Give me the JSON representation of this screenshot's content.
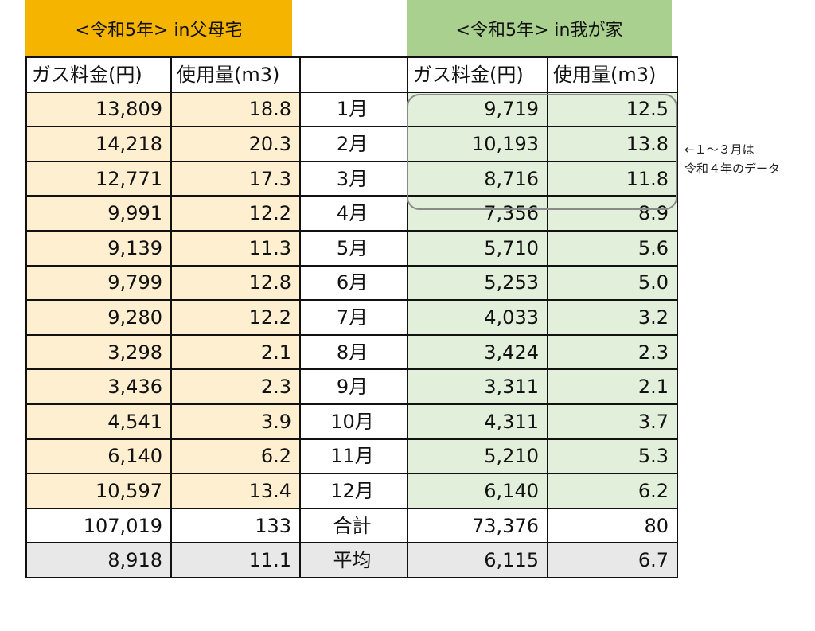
{
  "titles": {
    "parents": "<令和5年>  in父母宅",
    "home": "<令和5年>  in我が家"
  },
  "headers": {
    "gas_fee": "ガス料金(円)",
    "usage": "使用量(m3)"
  },
  "rows": [
    {
      "month": "1月",
      "parents_fee": "13,809",
      "parents_usage": "18.8",
      "home_fee": "9,719",
      "home_usage": "12.5"
    },
    {
      "month": "2月",
      "parents_fee": "14,218",
      "parents_usage": "20.3",
      "home_fee": "10,193",
      "home_usage": "13.8"
    },
    {
      "month": "3月",
      "parents_fee": "12,771",
      "parents_usage": "17.3",
      "home_fee": "8,716",
      "home_usage": "11.8"
    },
    {
      "month": "4月",
      "parents_fee": "9,991",
      "parents_usage": "12.2",
      "home_fee": "7,356",
      "home_usage": "8.9"
    },
    {
      "month": "5月",
      "parents_fee": "9,139",
      "parents_usage": "11.3",
      "home_fee": "5,710",
      "home_usage": "5.6"
    },
    {
      "month": "6月",
      "parents_fee": "9,799",
      "parents_usage": "12.8",
      "home_fee": "5,253",
      "home_usage": "5.0"
    },
    {
      "month": "7月",
      "parents_fee": "9,280",
      "parents_usage": "12.2",
      "home_fee": "4,033",
      "home_usage": "3.2"
    },
    {
      "month": "8月",
      "parents_fee": "3,298",
      "parents_usage": "2.1",
      "home_fee": "3,424",
      "home_usage": "2.3"
    },
    {
      "month": "9月",
      "parents_fee": "3,436",
      "parents_usage": "2.3",
      "home_fee": "3,311",
      "home_usage": "2.1"
    },
    {
      "month": "10月",
      "parents_fee": "4,541",
      "parents_usage": "3.9",
      "home_fee": "4,311",
      "home_usage": "3.7"
    },
    {
      "month": "11月",
      "parents_fee": "6,140",
      "parents_usage": "6.2",
      "home_fee": "5,210",
      "home_usage": "5.3"
    },
    {
      "month": "12月",
      "parents_fee": "10,597",
      "parents_usage": "13.4",
      "home_fee": "6,140",
      "home_usage": "6.2"
    }
  ],
  "total": {
    "label": "合計",
    "parents_fee": "107,019",
    "parents_usage": "133",
    "home_fee": "73,376",
    "home_usage": "80"
  },
  "average": {
    "label": "平均",
    "parents_fee": "8,918",
    "parents_usage": "11.1",
    "home_fee": "6,115",
    "home_usage": "6.7"
  },
  "note": {
    "line1": "←１～３月は",
    "line2": "令和４年のデータ"
  },
  "colors": {
    "parents_title": "#f5b400",
    "parents_cells": "#fdefd0",
    "home_title": "#a9d08e",
    "home_cells": "#e2efda",
    "average_row": "#e8e8e8"
  }
}
